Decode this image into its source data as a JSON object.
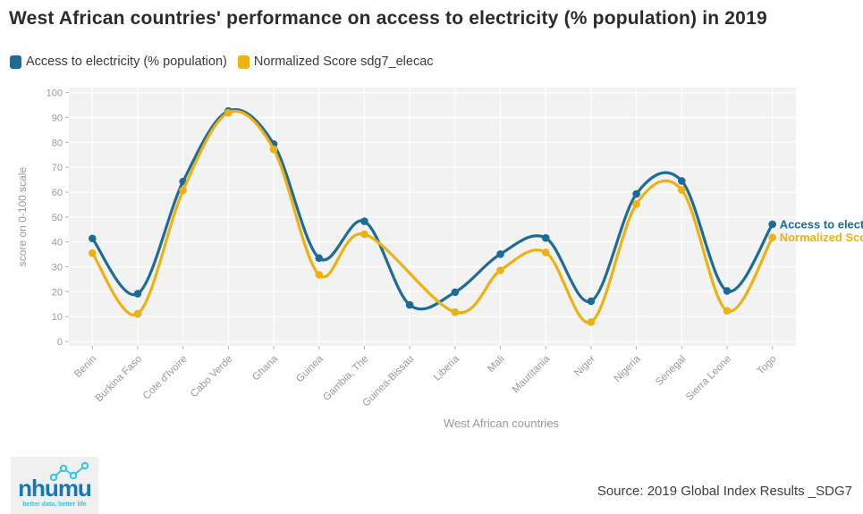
{
  "title": "West African countries' performance on access to electricity (% population) in 2019",
  "legend": {
    "items": [
      {
        "label": "Access to electricity (% population)",
        "color": "#1d6c98"
      },
      {
        "label": "Normalized Score sdg7_elecac",
        "color": "#edb112"
      }
    ]
  },
  "chart_data": {
    "type": "line",
    "title": "West African countries' performance on access to electricity (% population) in 2019",
    "categories": [
      "Benin",
      "Burkina Faso",
      "Cote d'Ivoire",
      "Cabo Verde",
      "Ghana",
      "Guinea",
      "Gambia, The",
      "Guinea-Bissau",
      "Liberia",
      "Mali",
      "Mauritania",
      "Niger",
      "Nigeria",
      "Senegal",
      "Sierra Leone",
      "Togo"
    ],
    "series": [
      {
        "name": "Access to electricity (% population)",
        "color": "#1d6c98",
        "values": [
          41.4,
          19.2,
          64.3,
          92.6,
          79.3,
          33.5,
          48.3,
          14.7,
          19.8,
          35.1,
          41.6,
          16.2,
          59.3,
          64.5,
          20.3,
          47.1
        ]
      },
      {
        "name": "Normalized Score sdg7_elecac",
        "color": "#edb112",
        "values": [
          35.5,
          11.1,
          60.7,
          91.9,
          77.2,
          26.8,
          43.1,
          null,
          11.8,
          28.6,
          35.8,
          7.8,
          55.2,
          60.9,
          12.3,
          41.8
        ]
      }
    ],
    "xlabel": "West African countries",
    "ylabel": "score on 0-100 scale",
    "ylim": [
      0,
      100
    ],
    "yticks": [
      0,
      10,
      20,
      30,
      40,
      50,
      60,
      70,
      80,
      90,
      100
    ],
    "grid": true,
    "legend_position": "top-left",
    "end_labels": true,
    "style": {
      "panel_bg": "#f2f2f2",
      "grid_color": "#ffffff",
      "tick_color": "#b3b3b3",
      "axis_text_color": "#9a9a9a",
      "axis_title_color": "#9a9a9a"
    }
  },
  "footer": {
    "source": "Source: 2019 Global Index Results _SDG7",
    "logo": {
      "wordmark": "nhumu",
      "tagline": "better data, better life"
    }
  }
}
